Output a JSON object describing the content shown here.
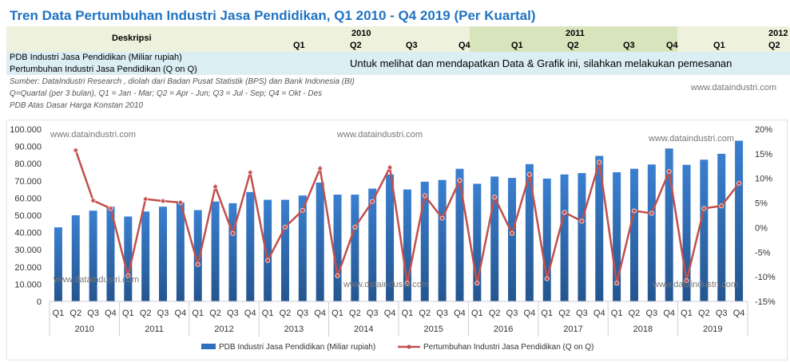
{
  "title": "Tren Data Pertumbuhan Industri Jasa Pendidikan, Q1 2010 - Q4 2019 (Per Kuartal)",
  "table": {
    "desc_header": "Deskripsi",
    "years": [
      "2010",
      "2011",
      "2012"
    ],
    "quarters": [
      "Q1",
      "Q2",
      "Q3",
      "Q4",
      "Q1",
      "Q2",
      "Q3",
      "Q4",
      "Q1",
      "Q2"
    ],
    "rows": [
      "PDB Industri Jasa Pendidikan (Miliar rupiah)",
      "Pertumbuhan Industri Jasa Pendidikan (Q on Q)"
    ],
    "message": "Untuk melihat dan mendapatkan Data & Grafik ini, silahkan melakukan pemesanan"
  },
  "notes": [
    "Sumber: DataIndustri Research , diolah dari Badan Pusat Statistik (BPS) dan Bank Indonesia (BI)",
    "Q=Quartal (per 3 bulan), Q1 = Jan - Mar; Q2 = Apr - Jun; Q3 = Jul - Sep; Q4 = Okt - Des",
    "PDB Atas Dasar Harga Konstan 2010"
  ],
  "watermark": "www.dataindustri.com",
  "chart_data": {
    "type": "bar+line",
    "years": [
      "2010",
      "2011",
      "2012",
      "2013",
      "2014",
      "2015",
      "2016",
      "2017",
      "2018",
      "2019"
    ],
    "quarters": [
      "Q1",
      "Q2",
      "Q3",
      "Q4"
    ],
    "left_ticks": [
      "0",
      "10.000",
      "20.000",
      "30.000",
      "40.000",
      "50.000",
      "60.000",
      "70.000",
      "80.000",
      "90.000",
      "100.000"
    ],
    "right_ticks": [
      "-15%",
      "-10%",
      "-5%",
      "0%",
      "5%",
      "10%",
      "15%",
      "20%"
    ],
    "ylim_left": [
      0,
      100000
    ],
    "ylim_right": [
      -15,
      20
    ],
    "series": [
      {
        "name": "PDB Industri Jasa Pendidikan (Miliar rupiah)",
        "type": "bar",
        "color": "#2e6fbd",
        "values": [
          43000,
          50000,
          52700,
          55000,
          49300,
          52200,
          55000,
          57500,
          53000,
          58000,
          57000,
          63500,
          59000,
          59000,
          61500,
          69000,
          62000,
          62000,
          65500,
          73700,
          65000,
          69500,
          70500,
          77000,
          68300,
          72500,
          71700,
          79700,
          71300,
          73700,
          74500,
          84500,
          75000,
          77000,
          79500,
          88800,
          79300,
          82300,
          85700,
          93300
        ]
      },
      {
        "name": "Pertumbuhan Industri Jasa Pendidikan (Q on Q)",
        "type": "line",
        "color": "#c0504d",
        "values": [
          null,
          15.7,
          5.5,
          3.9,
          -9.8,
          5.8,
          5.4,
          5.1,
          -7.5,
          8.3,
          -1.2,
          11.2,
          -6.7,
          0.1,
          3.5,
          12.0,
          -9.8,
          0.1,
          5.3,
          12.2,
          -11.3,
          6.5,
          1.9,
          9.6,
          -11.3,
          6.2,
          -1.2,
          10.8,
          -10.4,
          3.1,
          1.3,
          13.3,
          -11.3,
          3.4,
          2.9,
          11.4,
          -10.8,
          3.9,
          4.4,
          9.0
        ]
      }
    ]
  }
}
